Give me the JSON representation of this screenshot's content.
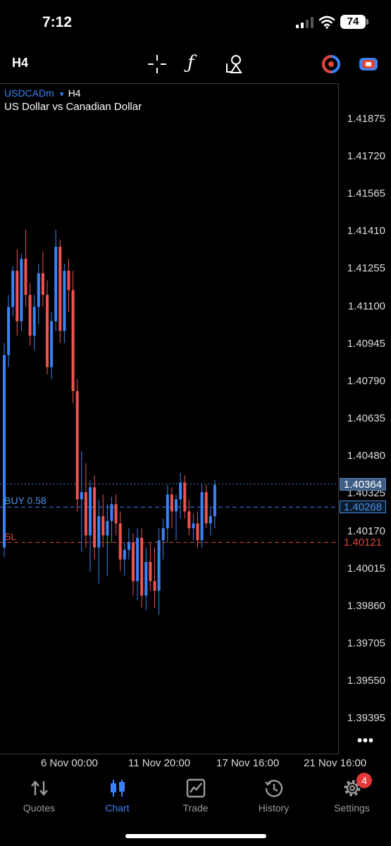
{
  "status_bar": {
    "time": "7:12",
    "battery": "74"
  },
  "toolbar": {
    "timeframe": "H4",
    "fx_glyph": "ƒ",
    "icons": [
      "crosshair-icon",
      "indicators-icon",
      "objects-icon",
      "trade-signal-icon",
      "one-click-trading-icon"
    ]
  },
  "chart": {
    "symbol": "USDCADm",
    "dropdown_glyph": "▼",
    "timeframe": "H4",
    "description": "US Dollar vs Canadian Dollar",
    "price_scale": [
      "1.41875",
      "1.41720",
      "1.41565",
      "1.41410",
      "1.41255",
      "1.41100",
      "1.40945",
      "1.40790",
      "1.40635",
      "1.40480",
      "1.40325",
      "1.40170",
      "1.40015",
      "1.39860",
      "1.39705",
      "1.39550",
      "1.39395"
    ],
    "bid_price": "1.40364",
    "buy_label": "BUY 0.58",
    "buy_price": "1.40268",
    "sl_label": "SL",
    "sl_price": "1.40121",
    "time_axis": [
      "6 Nov 00:00",
      "11 Nov 20:00",
      "17 Nov 16:00",
      "21 Nov 16:00"
    ],
    "more_glyph": "•••"
  },
  "chart_data": {
    "type": "candlestick",
    "symbol": "USDCADm",
    "timeframe": "H4",
    "ylim": [
      1.3924,
      1.4203
    ],
    "up_color": "#3b82f6",
    "down_color": "#ef5350",
    "ohlc": [
      [
        1.401,
        1.4095,
        1.4006,
        1.409
      ],
      [
        1.409,
        1.4115,
        1.4085,
        1.411
      ],
      [
        1.411,
        1.4127,
        1.4106,
        1.4125
      ],
      [
        1.4125,
        1.4134,
        1.4098,
        1.4104
      ],
      [
        1.4104,
        1.4132,
        1.41,
        1.413
      ],
      [
        1.413,
        1.4142,
        1.411,
        1.4115
      ],
      [
        1.4115,
        1.412,
        1.4094,
        1.4098
      ],
      [
        1.4098,
        1.4115,
        1.4092,
        1.411
      ],
      [
        1.411,
        1.4128,
        1.4103,
        1.4124
      ],
      [
        1.4124,
        1.4133,
        1.411,
        1.4115
      ],
      [
        1.4115,
        1.4121,
        1.4082,
        1.4085
      ],
      [
        1.4085,
        1.4108,
        1.408,
        1.4104
      ],
      [
        1.4104,
        1.4142,
        1.41,
        1.4135
      ],
      [
        1.4135,
        1.4138,
        1.4095,
        1.41
      ],
      [
        1.41,
        1.4128,
        1.4095,
        1.4125
      ],
      [
        1.4125,
        1.413,
        1.4108,
        1.4117
      ],
      [
        1.4117,
        1.4125,
        1.407,
        1.4075
      ],
      [
        1.4075,
        1.408,
        1.4025,
        1.403
      ],
      [
        1.403,
        1.405,
        1.4008,
        1.4033
      ],
      [
        1.4033,
        1.4045,
        1.401,
        1.4015
      ],
      [
        1.4015,
        1.4038,
        1.4,
        1.4035
      ],
      [
        1.4035,
        1.404,
        1.4005,
        1.401
      ],
      [
        1.401,
        1.403,
        1.3995,
        1.4023
      ],
      [
        1.4023,
        1.4032,
        1.401,
        1.4015
      ],
      [
        1.4015,
        1.4028,
        1.3998,
        1.4021
      ],
      [
        1.4021,
        1.4031,
        1.4012,
        1.4028
      ],
      [
        1.4028,
        1.4032,
        1.4015,
        1.402
      ],
      [
        1.402,
        1.4025,
        1.4,
        1.4005
      ],
      [
        1.4005,
        1.4012,
        1.3998,
        1.4009
      ],
      [
        1.4009,
        1.4018,
        1.4005,
        1.4012
      ],
      [
        1.4012,
        1.4016,
        1.399,
        1.3996
      ],
      [
        1.3996,
        1.4018,
        1.3988,
        1.4014
      ],
      [
        1.4014,
        1.4018,
        1.3985,
        1.399
      ],
      [
        1.399,
        1.401,
        1.3984,
        1.4004
      ],
      [
        1.4004,
        1.4012,
        1.3992,
        1.3996
      ],
      [
        1.3996,
        1.401,
        1.3985,
        1.3992
      ],
      [
        1.3992,
        1.4018,
        1.3982,
        1.4013
      ],
      [
        1.4013,
        1.4022,
        1.4005,
        1.4018
      ],
      [
        1.4018,
        1.4036,
        1.4012,
        1.4032
      ],
      [
        1.4032,
        1.4035,
        1.4018,
        1.4025
      ],
      [
        1.4025,
        1.4032,
        1.4013,
        1.403
      ],
      [
        1.403,
        1.4041,
        1.4022,
        1.4037
      ],
      [
        1.4037,
        1.404,
        1.4022,
        1.4025
      ],
      [
        1.4025,
        1.403,
        1.4015,
        1.4018
      ],
      [
        1.4018,
        1.4024,
        1.4013,
        1.402
      ],
      [
        1.402,
        1.4025,
        1.401,
        1.4013
      ],
      [
        1.4013,
        1.4036,
        1.401,
        1.4033
      ],
      [
        1.4033,
        1.4036,
        1.4018,
        1.402
      ],
      [
        1.402,
        1.4027,
        1.4015,
        1.4023
      ],
      [
        1.4023,
        1.4038,
        1.4018,
        1.4036
      ]
    ]
  },
  "bottom_nav": {
    "items": [
      {
        "label": "Quotes",
        "icon": "quotes-arrows-icon",
        "active": false
      },
      {
        "label": "Chart",
        "icon": "chart-candles-icon",
        "active": true
      },
      {
        "label": "Trade",
        "icon": "trade-chart-icon",
        "active": false
      },
      {
        "label": "History",
        "icon": "history-clock-icon",
        "active": false
      },
      {
        "label": "Settings",
        "icon": "settings-gear-icon",
        "active": false,
        "badge": "4"
      }
    ]
  }
}
